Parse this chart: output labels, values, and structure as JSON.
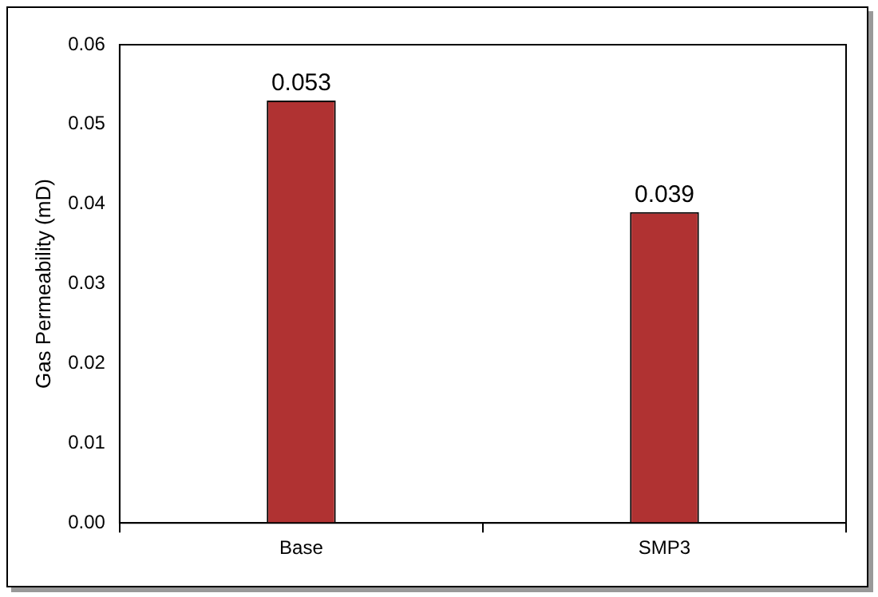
{
  "chart_data": {
    "type": "bar",
    "ylabel": "Gas Permeability (mD)",
    "categories": [
      "Base",
      "SMP3"
    ],
    "values": [
      0.053,
      0.039
    ],
    "color": "#b03232",
    "ylim": [
      0,
      0.06
    ],
    "yticks": [
      {
        "value": 0,
        "label": "0.00"
      },
      {
        "value": 0.01,
        "label": "0.01"
      },
      {
        "value": 0.02,
        "label": "0.02"
      },
      {
        "value": 0.03,
        "label": "0.03"
      },
      {
        "value": 0.04,
        "label": "0.04"
      },
      {
        "value": 0.05,
        "label": "0.05"
      },
      {
        "value": 0.06,
        "label": "0.06"
      }
    ],
    "grid": false,
    "legend": false,
    "data_labels": true
  }
}
